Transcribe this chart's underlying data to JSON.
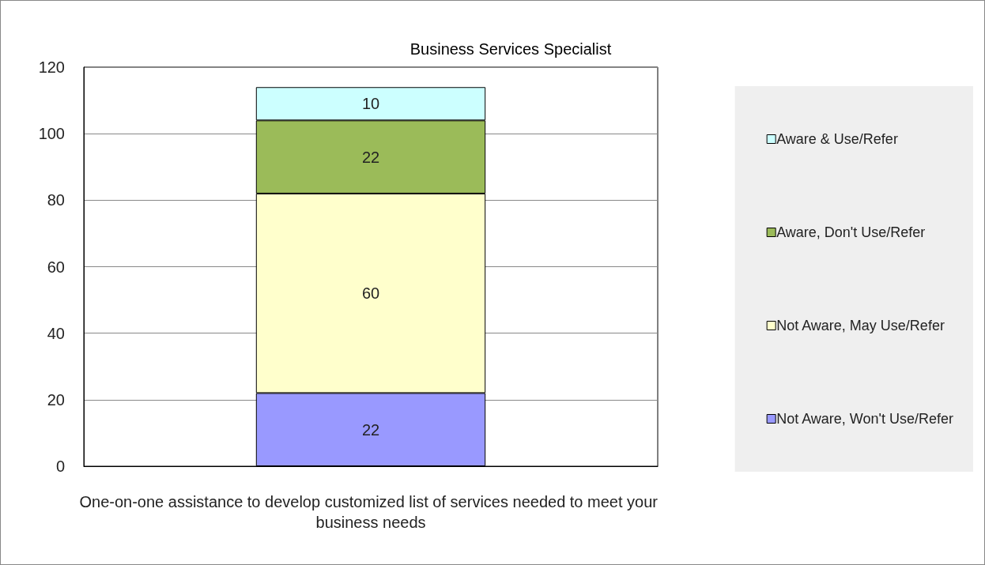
{
  "chart_data": {
    "type": "bar",
    "title": "Business Services Specialist",
    "categories": [
      "One-on-one assistance to develop customized list of services needed to meet your business needs"
    ],
    "series": [
      {
        "name": "Not Aware, Won't Use/Refer",
        "color": "#9999ff",
        "values": [
          22
        ]
      },
      {
        "name": "Not Aware, May Use/Refer",
        "color": "#ffffcc",
        "values": [
          60
        ]
      },
      {
        "name": "Aware, Don't Use/Refer",
        "color": "#9bbb59",
        "values": [
          22
        ]
      },
      {
        "name": "Aware & Use/Refer",
        "color": "#ccffff",
        "values": [
          10
        ]
      }
    ],
    "stacked": true,
    "ylim": [
      0,
      120
    ],
    "yticks": [
      0,
      20,
      40,
      60,
      80,
      100,
      120
    ],
    "grid": "y",
    "legend": "right",
    "data_labels": true
  }
}
